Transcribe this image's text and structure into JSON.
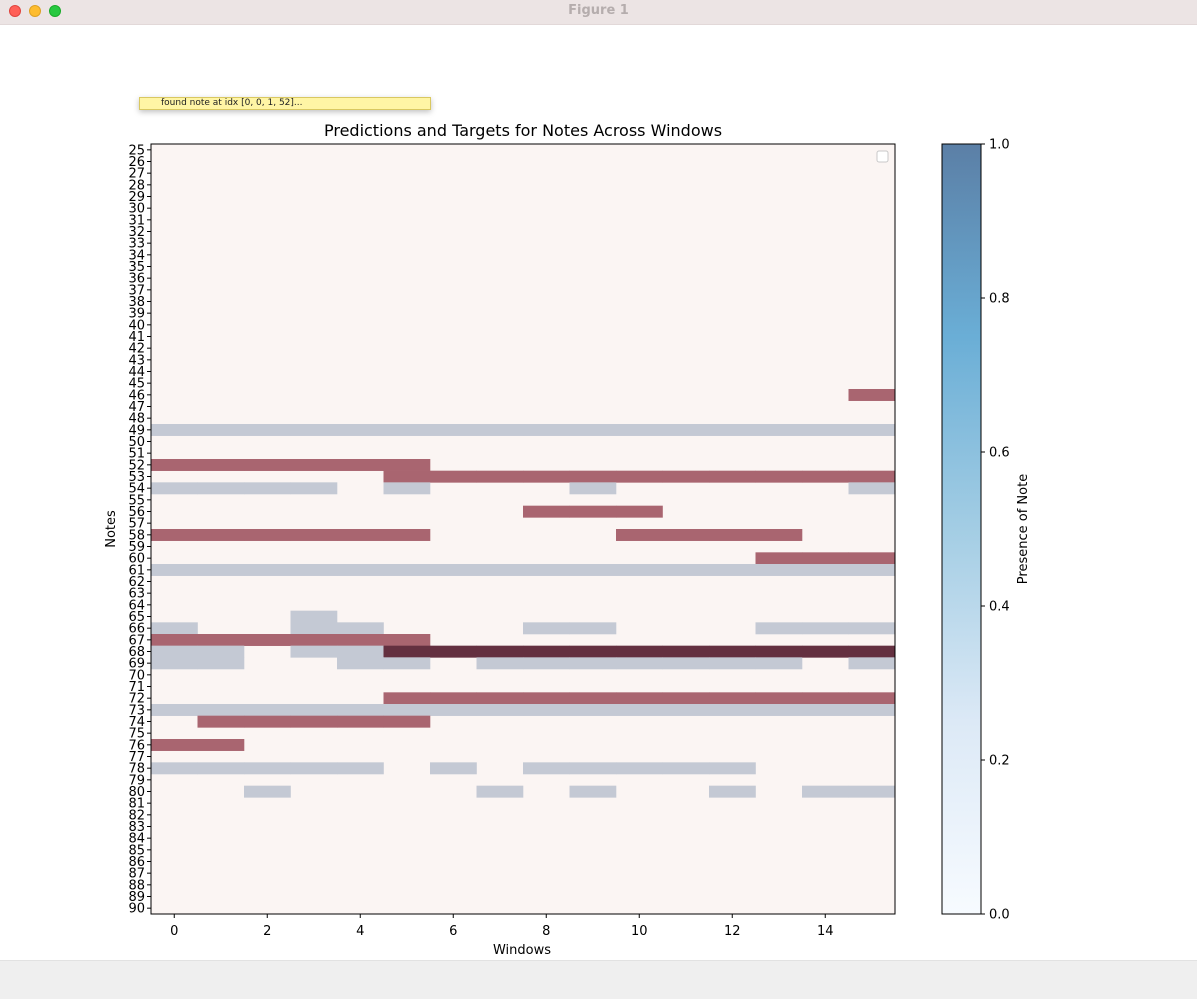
{
  "window": {
    "title": "Figure 1"
  },
  "tooltip": {
    "text": "found note at idx [0, 0, 1, 52]..."
  },
  "colors": {
    "background": "#fbf5f3",
    "target": "#a96570",
    "prediction": "#c4c9d4",
    "overlap": "#643040"
  },
  "chart_data": {
    "type": "heatmap",
    "title": "Predictions and Targets for Notes Across Windows",
    "xlabel": "Windows",
    "ylabel": "Notes",
    "x_range": [
      -0.5,
      15.5
    ],
    "x_ticks": [
      0,
      2,
      4,
      6,
      8,
      10,
      12,
      14
    ],
    "y_categories": [
      25,
      26,
      27,
      28,
      29,
      30,
      31,
      32,
      33,
      34,
      35,
      36,
      37,
      38,
      39,
      40,
      41,
      42,
      43,
      44,
      45,
      46,
      47,
      48,
      49,
      50,
      51,
      52,
      53,
      54,
      55,
      56,
      57,
      58,
      59,
      60,
      61,
      62,
      63,
      64,
      65,
      66,
      67,
      68,
      69,
      70,
      71,
      72,
      73,
      74,
      75,
      76,
      77,
      78,
      79,
      80,
      81,
      82,
      83,
      84,
      85,
      86,
      87,
      88,
      89,
      90
    ],
    "grid": false,
    "legend": "top-right (empty)",
    "colorbar": {
      "label": "Presence of Note",
      "range": [
        0.0,
        1.0
      ],
      "ticks": [
        "0.0",
        "0.2",
        "0.4",
        "0.6",
        "0.8",
        "1.0"
      ],
      "colormap": "Blues"
    },
    "targets": [
      {
        "note": 46,
        "windows": [
          15
        ]
      },
      {
        "note": 52,
        "windows": [
          0,
          1,
          2,
          3,
          4,
          5
        ]
      },
      {
        "note": 53,
        "windows": [
          5,
          6,
          7,
          8,
          9,
          10,
          11,
          12,
          13,
          14,
          15
        ]
      },
      {
        "note": 56,
        "windows": [
          8,
          9,
          10
        ]
      },
      {
        "note": 58,
        "windows": [
          0,
          1,
          2,
          3,
          4,
          5,
          10,
          11,
          12,
          13
        ]
      },
      {
        "note": 60,
        "windows": [
          13,
          14,
          15
        ]
      },
      {
        "note": 67,
        "windows": [
          0,
          1,
          2,
          3,
          4,
          5
        ]
      },
      {
        "note": 68,
        "windows": [
          5,
          6,
          7,
          8,
          9,
          10,
          11,
          12,
          13,
          14,
          15
        ]
      },
      {
        "note": 72,
        "windows": [
          5,
          6,
          7,
          8,
          9,
          10,
          11,
          12,
          13,
          14,
          15
        ]
      },
      {
        "note": 74,
        "windows": [
          1,
          2,
          3,
          4,
          5
        ]
      },
      {
        "note": 76,
        "windows": [
          0,
          1
        ]
      }
    ],
    "predictions": [
      {
        "note": 49,
        "windows": [
          0,
          1,
          2,
          3,
          4,
          5,
          6,
          7,
          8,
          9,
          10,
          11,
          12,
          13,
          14,
          15
        ]
      },
      {
        "note": 54,
        "windows": [
          0,
          1,
          2,
          3,
          5,
          9,
          15
        ]
      },
      {
        "note": 61,
        "windows": [
          0,
          1,
          2,
          3,
          4,
          5,
          6,
          7,
          8,
          9,
          10,
          11,
          12,
          13,
          14,
          15
        ]
      },
      {
        "note": 65,
        "windows": [
          3
        ]
      },
      {
        "note": 66,
        "windows": [
          0,
          3,
          4,
          8,
          9,
          13,
          14,
          15
        ]
      },
      {
        "note": 68,
        "windows": [
          0,
          1,
          3,
          4,
          5,
          6,
          7,
          8,
          9,
          10,
          11,
          12,
          13,
          14,
          15
        ]
      },
      {
        "note": 69,
        "windows": [
          0,
          1,
          4,
          5,
          7,
          8,
          9,
          10,
          11,
          12,
          13,
          15
        ]
      },
      {
        "note": 73,
        "windows": [
          0,
          1,
          2,
          3,
          4,
          5,
          6,
          7,
          8,
          9,
          10,
          11,
          12,
          13,
          14,
          15
        ]
      },
      {
        "note": 78,
        "windows": [
          0,
          1,
          2,
          3,
          4,
          6,
          8,
          9,
          10,
          11,
          12
        ]
      },
      {
        "note": 80,
        "windows": [
          2,
          7,
          9,
          12,
          14,
          15
        ]
      }
    ]
  }
}
